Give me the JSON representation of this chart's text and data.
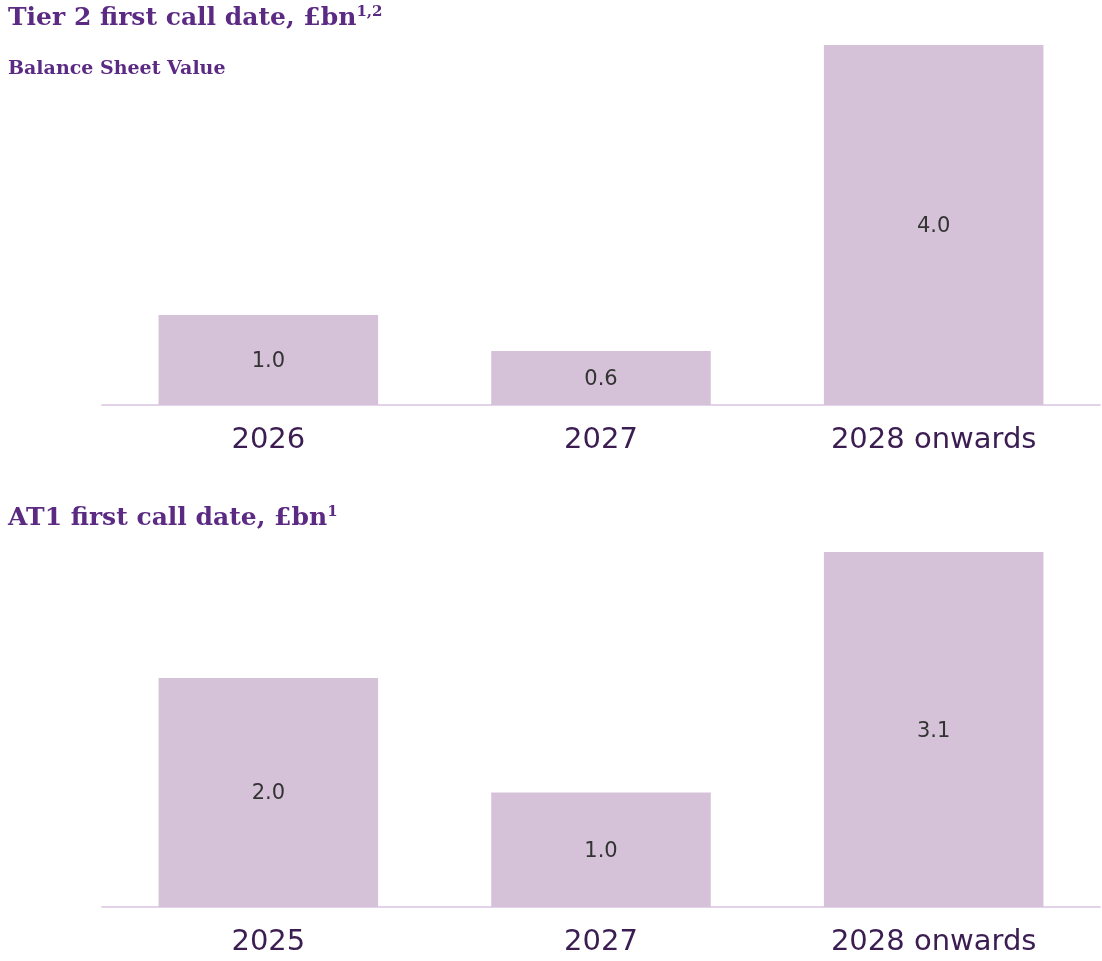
{
  "chart_data": [
    {
      "type": "bar",
      "title": "Tier 2 first call date, £bn$^{1,2}$",
      "subtitle": "Balance Sheet Value",
      "categories": [
        "2026",
        "2027",
        "2028 onwards"
      ],
      "values": [
        1.0,
        0.6,
        4.0
      ],
      "value_labels": [
        "1.0",
        "0.6",
        "4.0"
      ],
      "color": "#d5c2d8"
    },
    {
      "type": "bar",
      "title": "AT1 first call date, £bn$^{1}$",
      "categories": [
        "2025",
        "2027",
        "2028 onwards"
      ],
      "values": [
        2.0,
        1.0,
        3.1
      ],
      "value_labels": [
        "2.0",
        "1.0",
        "3.1"
      ],
      "color": "#d5c2d8"
    }
  ]
}
